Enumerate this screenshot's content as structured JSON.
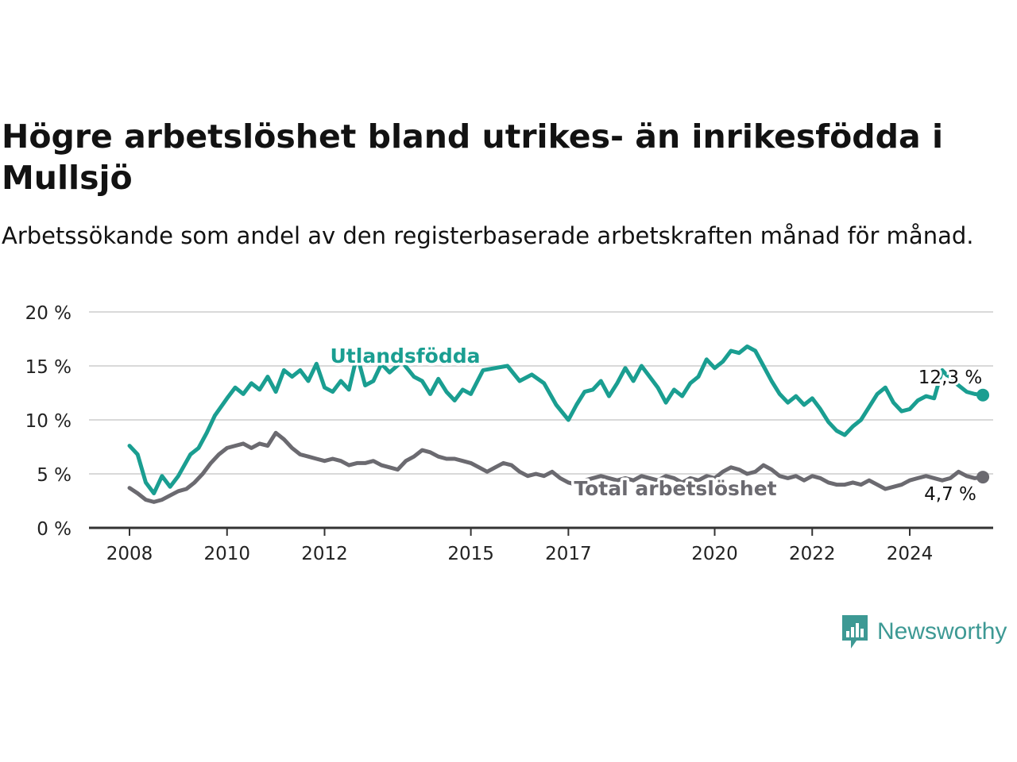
{
  "title": "Högre arbetslöshet bland utrikes- än inrikesfödda i Mullsjö",
  "subtitle": "Arbetssökande som andel av den registerbaserade arbetskraften månad för månad.",
  "brand": {
    "name": "Newsworthy",
    "icon": "newsworthy-logo-icon",
    "color": "#3d9994"
  },
  "colors": {
    "foreign_born": "#1a9e91",
    "total": "#6b6a70",
    "grid": "#d9d9d9",
    "axis": "#333333"
  },
  "chart_data": {
    "type": "line",
    "title": "",
    "xlabel": "",
    "ylabel": "",
    "x_ticks": [
      "2008",
      "2010",
      "2012",
      "2015",
      "2017",
      "2020",
      "2022",
      "2024"
    ],
    "y_ticks": [
      "0 %",
      "5 %",
      "10 %",
      "15 %",
      "20 %"
    ],
    "ylim": [
      0,
      20
    ],
    "xlim": [
      "2007-10",
      "2025-10"
    ],
    "grid": true,
    "series": [
      {
        "name": "Utlandsfödda",
        "color": "#1a9e91",
        "end_label": "12,3 %",
        "points": [
          [
            "2008-01",
            7.6
          ],
          [
            "2008-03",
            6.8
          ],
          [
            "2008-05",
            4.2
          ],
          [
            "2008-07",
            3.2
          ],
          [
            "2008-09",
            4.8
          ],
          [
            "2008-11",
            3.8
          ],
          [
            "2009-01",
            4.8
          ],
          [
            "2009-04",
            6.8
          ],
          [
            "2009-06",
            7.4
          ],
          [
            "2009-08",
            8.8
          ],
          [
            "2009-10",
            10.4
          ],
          [
            "2010-01",
            12.0
          ],
          [
            "2010-03",
            13.0
          ],
          [
            "2010-05",
            12.4
          ],
          [
            "2010-07",
            13.4
          ],
          [
            "2010-09",
            12.8
          ],
          [
            "2010-11",
            14.0
          ],
          [
            "2011-01",
            12.6
          ],
          [
            "2011-03",
            14.6
          ],
          [
            "2011-05",
            14.0
          ],
          [
            "2011-07",
            14.6
          ],
          [
            "2011-09",
            13.6
          ],
          [
            "2011-11",
            15.2
          ],
          [
            "2012-01",
            13.0
          ],
          [
            "2012-03",
            12.6
          ],
          [
            "2012-05",
            13.6
          ],
          [
            "2012-07",
            12.8
          ],
          [
            "2012-09",
            16.0
          ],
          [
            "2012-11",
            13.2
          ],
          [
            "2013-01",
            13.6
          ],
          [
            "2013-03",
            15.2
          ],
          [
            "2013-05",
            14.4
          ],
          [
            "2013-08",
            15.4
          ],
          [
            "2013-11",
            14.0
          ],
          [
            "2014-01",
            13.6
          ],
          [
            "2014-03",
            12.4
          ],
          [
            "2014-05",
            13.8
          ],
          [
            "2014-07",
            12.6
          ],
          [
            "2014-09",
            11.8
          ],
          [
            "2014-11",
            12.8
          ],
          [
            "2015-01",
            12.4
          ],
          [
            "2015-04",
            14.6
          ],
          [
            "2015-07",
            14.8
          ],
          [
            "2015-10",
            15.0
          ],
          [
            "2016-01",
            13.6
          ],
          [
            "2016-04",
            14.2
          ],
          [
            "2016-07",
            13.4
          ],
          [
            "2016-10",
            11.4
          ],
          [
            "2017-01",
            10.0
          ],
          [
            "2017-03",
            11.4
          ],
          [
            "2017-05",
            12.6
          ],
          [
            "2017-07",
            12.8
          ],
          [
            "2017-09",
            13.6
          ],
          [
            "2017-11",
            12.2
          ],
          [
            "2018-01",
            13.4
          ],
          [
            "2018-03",
            14.8
          ],
          [
            "2018-05",
            13.6
          ],
          [
            "2018-07",
            15.0
          ],
          [
            "2018-09",
            14.0
          ],
          [
            "2018-11",
            13.0
          ],
          [
            "2019-01",
            11.6
          ],
          [
            "2019-03",
            12.8
          ],
          [
            "2019-05",
            12.2
          ],
          [
            "2019-07",
            13.4
          ],
          [
            "2019-09",
            14.0
          ],
          [
            "2019-11",
            15.6
          ],
          [
            "2020-01",
            14.8
          ],
          [
            "2020-03",
            15.4
          ],
          [
            "2020-05",
            16.4
          ],
          [
            "2020-07",
            16.2
          ],
          [
            "2020-09",
            16.8
          ],
          [
            "2020-11",
            16.4
          ],
          [
            "2021-01",
            15.0
          ],
          [
            "2021-03",
            13.6
          ],
          [
            "2021-05",
            12.4
          ],
          [
            "2021-07",
            11.6
          ],
          [
            "2021-09",
            12.2
          ],
          [
            "2021-11",
            11.4
          ],
          [
            "2022-01",
            12.0
          ],
          [
            "2022-03",
            11.0
          ],
          [
            "2022-05",
            9.8
          ],
          [
            "2022-07",
            9.0
          ],
          [
            "2022-09",
            8.6
          ],
          [
            "2022-11",
            9.4
          ],
          [
            "2023-01",
            10.0
          ],
          [
            "2023-03",
            11.2
          ],
          [
            "2023-05",
            12.4
          ],
          [
            "2023-07",
            13.0
          ],
          [
            "2023-09",
            11.6
          ],
          [
            "2023-11",
            10.8
          ],
          [
            "2024-01",
            11.0
          ],
          [
            "2024-03",
            11.8
          ],
          [
            "2024-05",
            12.2
          ],
          [
            "2024-07",
            12.0
          ],
          [
            "2024-09",
            14.6
          ],
          [
            "2024-11",
            13.8
          ],
          [
            "2025-01",
            13.2
          ],
          [
            "2025-03",
            12.6
          ],
          [
            "2025-05",
            12.4
          ],
          [
            "2025-07",
            12.3
          ]
        ]
      },
      {
        "name": "Total arbetslöshet",
        "color": "#6b6a70",
        "end_label": "4,7 %",
        "points": [
          [
            "2008-01",
            3.7
          ],
          [
            "2008-03",
            3.2
          ],
          [
            "2008-05",
            2.6
          ],
          [
            "2008-07",
            2.4
          ],
          [
            "2008-09",
            2.6
          ],
          [
            "2008-11",
            3.0
          ],
          [
            "2009-01",
            3.4
          ],
          [
            "2009-03",
            3.6
          ],
          [
            "2009-05",
            4.2
          ],
          [
            "2009-07",
            5.0
          ],
          [
            "2009-09",
            6.0
          ],
          [
            "2009-11",
            6.8
          ],
          [
            "2010-01",
            7.4
          ],
          [
            "2010-03",
            7.6
          ],
          [
            "2010-05",
            7.8
          ],
          [
            "2010-07",
            7.4
          ],
          [
            "2010-09",
            7.8
          ],
          [
            "2010-11",
            7.6
          ],
          [
            "2011-01",
            8.8
          ],
          [
            "2011-03",
            8.2
          ],
          [
            "2011-05",
            7.4
          ],
          [
            "2011-07",
            6.8
          ],
          [
            "2011-09",
            6.6
          ],
          [
            "2011-11",
            6.4
          ],
          [
            "2012-01",
            6.2
          ],
          [
            "2012-03",
            6.4
          ],
          [
            "2012-05",
            6.2
          ],
          [
            "2012-07",
            5.8
          ],
          [
            "2012-09",
            6.0
          ],
          [
            "2012-11",
            6.0
          ],
          [
            "2013-01",
            6.2
          ],
          [
            "2013-03",
            5.8
          ],
          [
            "2013-05",
            5.6
          ],
          [
            "2013-07",
            5.4
          ],
          [
            "2013-09",
            6.2
          ],
          [
            "2013-11",
            6.6
          ],
          [
            "2014-01",
            7.2
          ],
          [
            "2014-03",
            7.0
          ],
          [
            "2014-05",
            6.6
          ],
          [
            "2014-07",
            6.4
          ],
          [
            "2014-09",
            6.4
          ],
          [
            "2014-11",
            6.2
          ],
          [
            "2015-01",
            6.0
          ],
          [
            "2015-03",
            5.6
          ],
          [
            "2015-05",
            5.2
          ],
          [
            "2015-07",
            5.6
          ],
          [
            "2015-09",
            6.0
          ],
          [
            "2015-11",
            5.8
          ],
          [
            "2016-01",
            5.2
          ],
          [
            "2016-03",
            4.8
          ],
          [
            "2016-05",
            5.0
          ],
          [
            "2016-07",
            4.8
          ],
          [
            "2016-09",
            5.2
          ],
          [
            "2016-11",
            4.6
          ],
          [
            "2017-01",
            4.2
          ],
          [
            "2017-03",
            4.0
          ],
          [
            "2017-05",
            4.4
          ],
          [
            "2017-07",
            4.6
          ],
          [
            "2017-09",
            4.8
          ],
          [
            "2017-11",
            4.6
          ],
          [
            "2018-01",
            4.4
          ],
          [
            "2018-03",
            4.6
          ],
          [
            "2018-05",
            4.4
          ],
          [
            "2018-07",
            4.8
          ],
          [
            "2018-09",
            4.6
          ],
          [
            "2018-11",
            4.4
          ],
          [
            "2019-01",
            4.8
          ],
          [
            "2019-03",
            4.6
          ],
          [
            "2019-05",
            4.2
          ],
          [
            "2019-07",
            4.6
          ],
          [
            "2019-09",
            4.4
          ],
          [
            "2019-11",
            4.8
          ],
          [
            "2020-01",
            4.6
          ],
          [
            "2020-03",
            5.2
          ],
          [
            "2020-05",
            5.6
          ],
          [
            "2020-07",
            5.4
          ],
          [
            "2020-09",
            5.0
          ],
          [
            "2020-11",
            5.2
          ],
          [
            "2021-01",
            5.8
          ],
          [
            "2021-03",
            5.4
          ],
          [
            "2021-05",
            4.8
          ],
          [
            "2021-07",
            4.6
          ],
          [
            "2021-09",
            4.8
          ],
          [
            "2021-11",
            4.4
          ],
          [
            "2022-01",
            4.8
          ],
          [
            "2022-03",
            4.6
          ],
          [
            "2022-05",
            4.2
          ],
          [
            "2022-07",
            4.0
          ],
          [
            "2022-09",
            4.0
          ],
          [
            "2022-11",
            4.2
          ],
          [
            "2023-01",
            4.0
          ],
          [
            "2023-03",
            4.4
          ],
          [
            "2023-05",
            4.0
          ],
          [
            "2023-07",
            3.6
          ],
          [
            "2023-09",
            3.8
          ],
          [
            "2023-11",
            4.0
          ],
          [
            "2024-01",
            4.4
          ],
          [
            "2024-03",
            4.6
          ],
          [
            "2024-05",
            4.8
          ],
          [
            "2024-07",
            4.6
          ],
          [
            "2024-09",
            4.4
          ],
          [
            "2024-11",
            4.6
          ],
          [
            "2025-01",
            5.2
          ],
          [
            "2025-03",
            4.8
          ],
          [
            "2025-05",
            4.6
          ],
          [
            "2025-07",
            4.7
          ]
        ]
      }
    ]
  }
}
